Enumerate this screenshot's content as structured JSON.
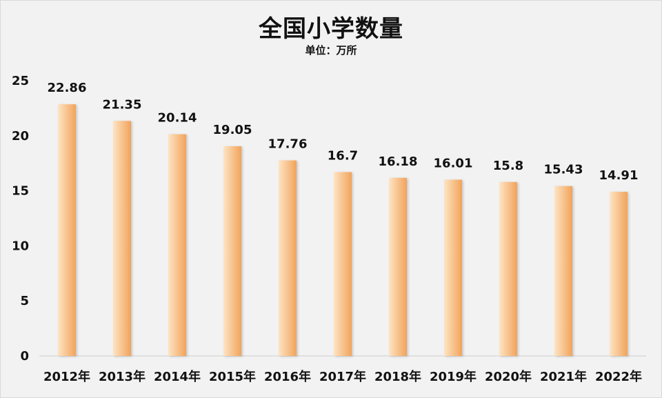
{
  "chart_data": {
    "type": "bar",
    "title": "全国小学数量",
    "subtitle": "单位：万所",
    "categories": [
      "2012年",
      "2013年",
      "2014年",
      "2015年",
      "2016年",
      "2017年",
      "2018年",
      "2019年",
      "2020年",
      "2021年",
      "2022年"
    ],
    "values": [
      22.86,
      21.35,
      20.14,
      19.05,
      17.76,
      16.7,
      16.18,
      16.01,
      15.8,
      15.43,
      14.91
    ],
    "data_labels": [
      "22.86",
      "21.35",
      "20.14",
      "19.05",
      "17.76",
      "16.7",
      "16.18",
      "16.01",
      "15.8",
      "15.43",
      "14.91"
    ],
    "ylim": [
      0,
      25
    ],
    "yticks": [
      0,
      5,
      10,
      15,
      20,
      25
    ],
    "grid": false,
    "bar_color_light": "#fde4c4",
    "bar_color_dark": "#f2a35a"
  }
}
